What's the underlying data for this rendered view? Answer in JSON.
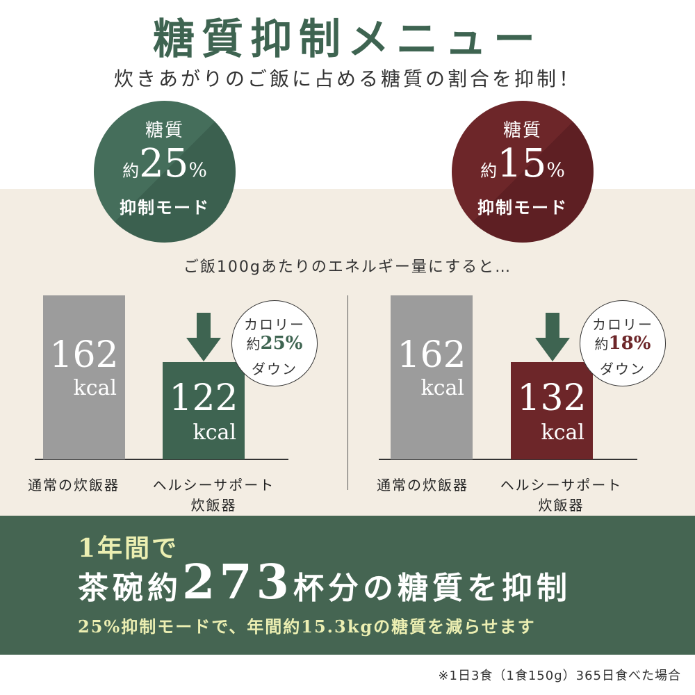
{
  "header": {
    "title": "糖質抑制メニュー",
    "subtitle": "炊きあがりのご飯に占める糖質の割合を抑制！"
  },
  "modes": [
    {
      "line1": "糖質",
      "prefix": "約",
      "percent": "25",
      "percent_unit": "%",
      "line3": "抑制モード",
      "color": "#3e6451"
    },
    {
      "line1": "糖質",
      "prefix": "約",
      "percent": "15",
      "percent_unit": "%",
      "line3": "抑制モード",
      "color": "#6d2629"
    }
  ],
  "energy_note": "ご飯100gあたりのエネルギー量にすると…",
  "comparisons": [
    {
      "normal": {
        "value": "162",
        "unit": "kcal",
        "label": "通常の炊飯器"
      },
      "healthy": {
        "value": "122",
        "unit": "kcal",
        "label_line1": "ヘルシーサポート",
        "label_line2": "炊飯器"
      },
      "badge": {
        "line1": "カロリー",
        "prefix": "約",
        "value": "25%",
        "line3": "ダウン"
      },
      "accent": "#3e6451"
    },
    {
      "normal": {
        "value": "162",
        "unit": "kcal",
        "label": "通常の炊飯器"
      },
      "healthy": {
        "value": "132",
        "unit": "kcal",
        "label_line1": "ヘルシーサポート",
        "label_line2": "炊飯器"
      },
      "badge": {
        "line1": "カロリー",
        "prefix": "約",
        "value": "18%",
        "line3": "ダウン"
      },
      "accent": "#6d2629"
    }
  ],
  "summary": {
    "line1": "1年間で",
    "line2_pre": "茶碗約",
    "line2_num": "273",
    "line2_post": "杯分の糖質を抑制",
    "line3": "25%抑制モードで、年間約15.3kgの糖質を減らせます"
  },
  "footnote": "※1日3食（1食150g）365日食べた場合",
  "colors": {
    "green": "#3e6451",
    "red": "#6d2629",
    "beige": "#f3ede3",
    "highlight": "#ecefb2"
  }
}
